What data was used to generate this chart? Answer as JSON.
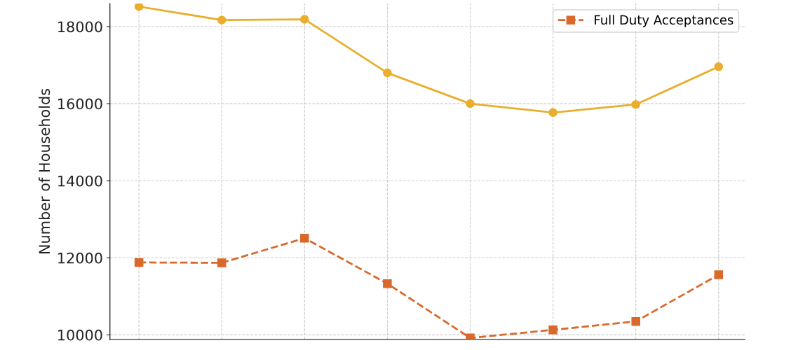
{
  "chart_data": {
    "type": "line",
    "ylabel": "Number of Households",
    "categories": [
      null,
      null,
      null,
      null,
      null,
      null,
      null,
      null
    ],
    "series": [
      {
        "color": "#e8ae2c",
        "marker": "circle",
        "line_style": "solid",
        "values": [
          18520,
          18170,
          18190,
          16800,
          16000,
          15770,
          15980,
          16960
        ]
      },
      {
        "name": "Full Duty Acceptances",
        "color": "#d9692a",
        "marker": "square",
        "line_style": "dashed",
        "values": [
          11880,
          11870,
          12510,
          11330,
          9920,
          10130,
          10350,
          11560
        ]
      }
    ],
    "ylim": [
      9880,
      18600
    ],
    "yticks": [
      10000,
      12000,
      14000,
      16000,
      18000
    ],
    "grid": true,
    "legend": "top right",
    "tick_labels": "y"
  }
}
